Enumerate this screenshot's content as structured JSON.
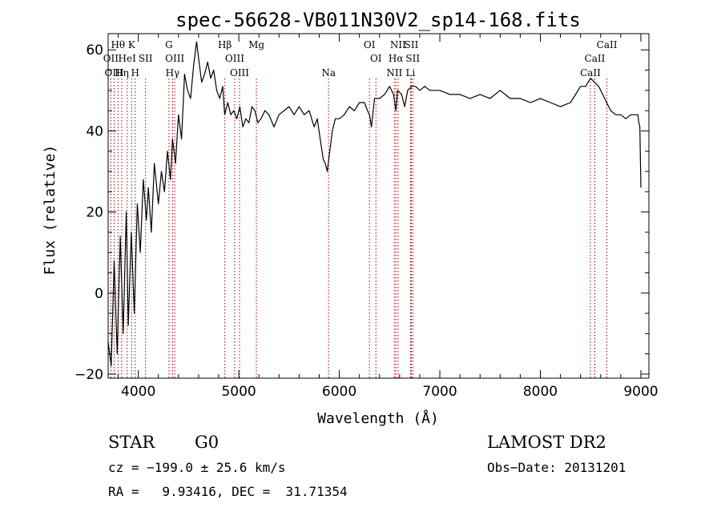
{
  "chart_data": {
    "type": "line",
    "title": "spec-56628-VB011N30V2_sp14-168.fits",
    "xlabel": "Wavelength (Å)",
    "ylabel": "Flux (relative)",
    "xlim": [
      3700,
      9080
    ],
    "ylim": [
      -21,
      64
    ],
    "x_ticks": [
      4000,
      5000,
      6000,
      7000,
      8000,
      9000
    ],
    "y_ticks": [
      -20,
      0,
      20,
      40,
      60
    ],
    "series": [
      {
        "name": "spectrum",
        "x": [
          3700,
          3730,
          3760,
          3790,
          3820,
          3850,
          3880,
          3900,
          3930,
          3960,
          3990,
          4020,
          4050,
          4080,
          4100,
          4130,
          4160,
          4200,
          4230,
          4260,
          4290,
          4320,
          4340,
          4370,
          4400,
          4430,
          4460,
          4490,
          4520,
          4550,
          4580,
          4600,
          4630,
          4660,
          4690,
          4720,
          4750,
          4780,
          4810,
          4840,
          4860,
          4890,
          4920,
          4950,
          4980,
          5010,
          5040,
          5070,
          5100,
          5130,
          5160,
          5190,
          5220,
          5260,
          5300,
          5350,
          5400,
          5450,
          5500,
          5550,
          5600,
          5650,
          5700,
          5750,
          5780,
          5810,
          5840,
          5860,
          5880,
          5900,
          5930,
          5960,
          6000,
          6050,
          6100,
          6150,
          6200,
          6250,
          6280,
          6300,
          6320,
          6350,
          6400,
          6450,
          6500,
          6540,
          6563,
          6580,
          6620,
          6650,
          6680,
          6720,
          6760,
          6800,
          6850,
          6900,
          7000,
          7100,
          7200,
          7300,
          7400,
          7500,
          7600,
          7700,
          7800,
          7900,
          8000,
          8100,
          8200,
          8300,
          8400,
          8450,
          8500,
          8540,
          8580,
          8620,
          8660,
          8700,
          8750,
          8800,
          8850,
          8900,
          8950,
          8970,
          8980,
          8990,
          9000
        ],
        "y": [
          -12,
          -18,
          8,
          -15,
          14,
          -10,
          20,
          -8,
          15,
          -5,
          22,
          10,
          28,
          18,
          26,
          15,
          32,
          22,
          30,
          25,
          35,
          28,
          38,
          32,
          44,
          38,
          54,
          50,
          48,
          56,
          62,
          58,
          52,
          54,
          57,
          53,
          55,
          50,
          48,
          51,
          44,
          47,
          44,
          45,
          43,
          46,
          41,
          43,
          42,
          46,
          45,
          42,
          43,
          45,
          44,
          41,
          44,
          45,
          46,
          44,
          46,
          44,
          45,
          41,
          43,
          38,
          33,
          32,
          30,
          34,
          40,
          43,
          43,
          44,
          46,
          45,
          47,
          47,
          45,
          44,
          41,
          48,
          48,
          49,
          51,
          49,
          45,
          50,
          49,
          46,
          50,
          51,
          51,
          50,
          51,
          50,
          50,
          49,
          49,
          48,
          49,
          48,
          50,
          48,
          48,
          47,
          48,
          47,
          46,
          47,
          51,
          51,
          53,
          52,
          51,
          49,
          47,
          45,
          44,
          44,
          43,
          44,
          44,
          44,
          42,
          41,
          26
        ]
      }
    ],
    "line_markers": [
      {
        "label": "Hθ",
        "wavelength": 3798,
        "row": 1
      },
      {
        "label": "K",
        "wavelength": 3934,
        "row": 1
      },
      {
        "label": "OII",
        "wavelength": 3727,
        "row": 2
      },
      {
        "label": "HeI",
        "wavelength": 3889,
        "row": 2
      },
      {
        "label": "SII",
        "wavelength": 4072,
        "row": 2
      },
      {
        "label": "OIII",
        "wavelength": 3760,
        "row": 3
      },
      {
        "label": "Hη",
        "wavelength": 3835,
        "row": 3
      },
      {
        "label": "H",
        "wavelength": 3969,
        "row": 3
      },
      {
        "label": "G",
        "wavelength": 4305,
        "row": 1
      },
      {
        "label": "OIII",
        "wavelength": 4363,
        "row": 2
      },
      {
        "label": "Hγ",
        "wavelength": 4341,
        "row": 3
      },
      {
        "label": "Hβ",
        "wavelength": 4861,
        "row": 1
      },
      {
        "label": "OIII",
        "wavelength": 4959,
        "row": 2
      },
      {
        "label": "OIII",
        "wavelength": 5007,
        "row": 3
      },
      {
        "label": "Mg",
        "wavelength": 5175,
        "row": 1
      },
      {
        "label": "Na",
        "wavelength": 5893,
        "row": 3
      },
      {
        "label": "OI",
        "wavelength": 6300,
        "row": 1
      },
      {
        "label": "OI",
        "wavelength": 6364,
        "row": 2
      },
      {
        "label": "NII",
        "wavelength": 6584,
        "row": 1
      },
      {
        "label": "Hα",
        "wavelength": 6563,
        "row": 2
      },
      {
        "label": "NII",
        "wavelength": 6548,
        "row": 3
      },
      {
        "label": "SII",
        "wavelength": 6717,
        "row": 1
      },
      {
        "label": "SII",
        "wavelength": 6731,
        "row": 2
      },
      {
        "label": "Li",
        "wavelength": 6708,
        "row": 3
      },
      {
        "label": "CaII",
        "wavelength": 8662,
        "row": 1
      },
      {
        "label": "CaII",
        "wavelength": 8542,
        "row": 2
      },
      {
        "label": "CaII",
        "wavelength": 8498,
        "row": 3
      }
    ]
  },
  "info": {
    "class": "STAR",
    "subclass": "G0",
    "survey": "LAMOST DR2",
    "cz": "cz = −199.0 ± 25.6 km/s",
    "obs_date": "Obs−Date: 20131201",
    "coords": "RA =   9.93416, DEC =  31.71354"
  },
  "colors": {
    "line_marker": "#a00000",
    "spectrum": "#000000",
    "frame": "#000000"
  }
}
